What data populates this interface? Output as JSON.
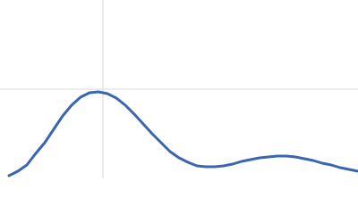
{
  "chart_data": {
    "type": "line",
    "x": [
      0.1,
      0.2,
      0.3,
      0.4,
      0.5,
      0.6,
      0.7,
      0.8,
      0.9,
      1.0,
      1.1,
      1.2,
      1.3,
      1.4,
      1.5,
      1.6,
      1.7,
      1.8,
      1.9,
      2.0,
      2.1,
      2.2,
      2.3,
      2.4,
      2.5,
      2.6,
      2.7,
      2.8,
      2.9,
      3.0,
      3.1,
      3.2,
      3.3,
      3.4,
      3.5,
      3.6,
      3.7,
      3.8,
      3.9,
      4.0
    ],
    "series": [
      {
        "color": "#3a66b0",
        "values": [
          0.03,
          0.08,
          0.15,
          0.28,
          0.4,
          0.55,
          0.7,
          0.82,
          0.91,
          0.96,
          0.97,
          0.95,
          0.9,
          0.82,
          0.72,
          0.61,
          0.5,
          0.4,
          0.3,
          0.23,
          0.18,
          0.14,
          0.13,
          0.13,
          0.14,
          0.16,
          0.19,
          0.21,
          0.23,
          0.24,
          0.25,
          0.25,
          0.24,
          0.22,
          0.2,
          0.17,
          0.15,
          0.12,
          0.1,
          0.08
        ]
      }
    ],
    "xlim": [
      0,
      4
    ],
    "ylim": [
      0,
      2
    ],
    "grid_x": [
      1.15
    ],
    "grid_y": [
      1
    ],
    "grid": true
  }
}
